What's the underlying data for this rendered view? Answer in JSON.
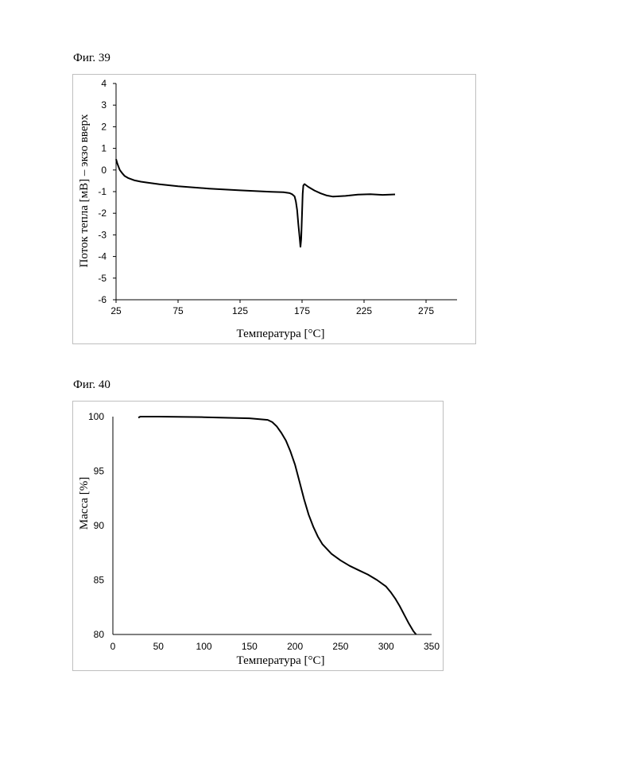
{
  "figures": [
    {
      "label": "Фиг. 39"
    },
    {
      "label": "Фиг. 40"
    }
  ],
  "chart_data": [
    {
      "type": "line",
      "xlabel": "Температура [°C]",
      "ylabel": "Поток тепла [мВ] – экзо вверх",
      "xlim": [
        25,
        300
      ],
      "ylim": [
        -6,
        4
      ],
      "xticks": [
        25,
        75,
        125,
        175,
        225,
        275
      ],
      "yticks": [
        4,
        3,
        2,
        1,
        0,
        -1,
        -2,
        -3,
        -4,
        -5,
        -6
      ],
      "grid": false,
      "color": "#000000",
      "series": [
        {
          "x": [
            25,
            26,
            27,
            28,
            30,
            32,
            35,
            40,
            45,
            50,
            60,
            75,
            100,
            125,
            150,
            160,
            165,
            167,
            169,
            170,
            171,
            172,
            173,
            173.7,
            174.3,
            175,
            175.5,
            176,
            177,
            180,
            185,
            190,
            195,
            200,
            210,
            220,
            230,
            240,
            250
          ],
          "y": [
            0.5,
            0.3,
            0.15,
            0.0,
            -0.15,
            -0.28,
            -0.38,
            -0.48,
            -0.54,
            -0.58,
            -0.66,
            -0.75,
            -0.86,
            -0.94,
            -1.01,
            -1.03,
            -1.07,
            -1.12,
            -1.22,
            -1.45,
            -1.85,
            -2.5,
            -3.1,
            -3.55,
            -3.2,
            -2.0,
            -1.1,
            -0.72,
            -0.65,
            -0.78,
            -0.95,
            -1.08,
            -1.18,
            -1.23,
            -1.2,
            -1.14,
            -1.12,
            -1.15,
            -1.13
          ]
        }
      ]
    },
    {
      "type": "line",
      "xlabel": "Температура [°C]",
      "ylabel": "Масса [%]",
      "xlim": [
        0,
        350
      ],
      "ylim": [
        80,
        100
      ],
      "xticks": [
        0,
        50,
        100,
        150,
        200,
        250,
        300,
        350
      ],
      "yticks": [
        100,
        95,
        90,
        85,
        80
      ],
      "grid": false,
      "color": "#000000",
      "series": [
        {
          "x": [
            28,
            30,
            50,
            100,
            150,
            170,
            175,
            180,
            185,
            190,
            195,
            200,
            205,
            210,
            215,
            220,
            225,
            230,
            240,
            250,
            260,
            270,
            280,
            290,
            300,
            305,
            310,
            315,
            320,
            325,
            330,
            333
          ],
          "y": [
            99.9,
            100.0,
            100.0,
            99.95,
            99.85,
            99.7,
            99.5,
            99.1,
            98.5,
            97.8,
            96.8,
            95.6,
            94.0,
            92.4,
            91.0,
            89.9,
            89.0,
            88.3,
            87.4,
            86.8,
            86.3,
            85.9,
            85.5,
            85.0,
            84.4,
            83.9,
            83.3,
            82.6,
            81.8,
            81.0,
            80.3,
            79.9
          ]
        }
      ]
    }
  ]
}
